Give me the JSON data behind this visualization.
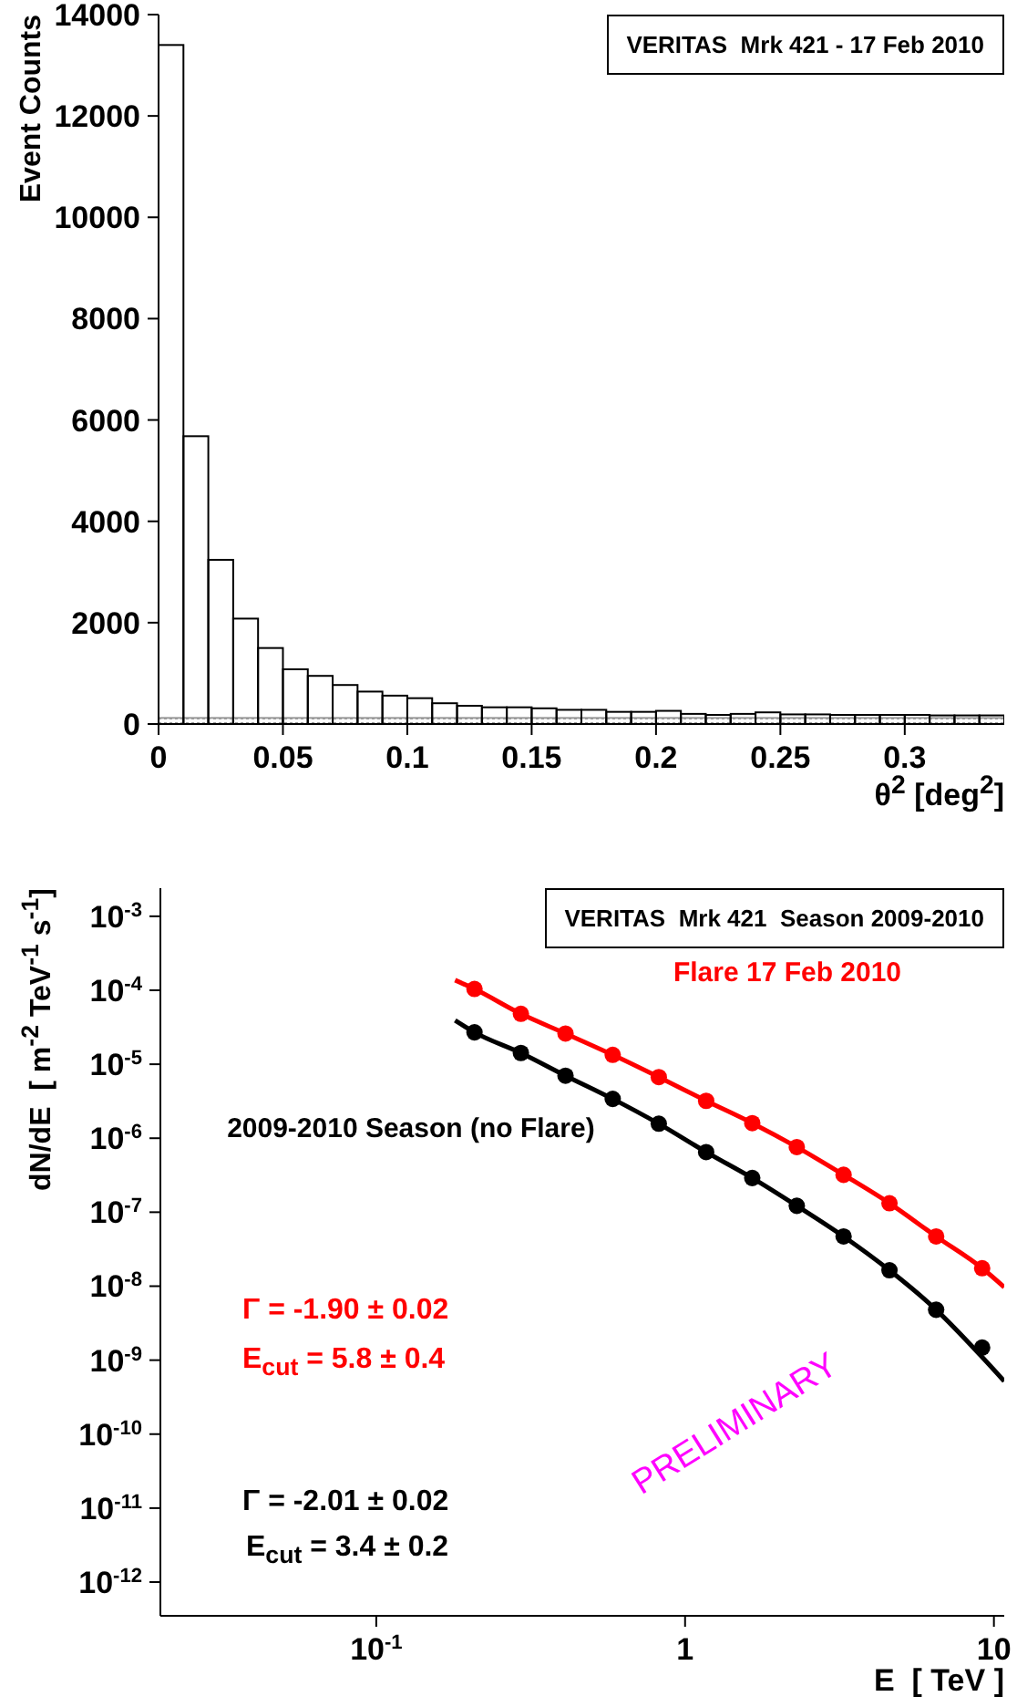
{
  "chart_data": [
    {
      "type": "histogram",
      "title": "VERITAS  Mrk 421 - 17 Feb 2010",
      "xlabel": "θ$^{2}$ [deg$^{2}$]",
      "ylabel": "Event Counts",
      "bins": [
        0,
        0.01,
        0.02,
        0.03,
        0.04,
        0.05,
        0.06,
        0.07,
        0.08,
        0.09,
        0.1,
        0.11,
        0.12,
        0.13,
        0.14,
        0.15,
        0.16,
        0.17,
        0.18,
        0.19,
        0.2,
        0.21,
        0.22,
        0.23,
        0.24,
        0.25,
        0.26,
        0.27,
        0.28,
        0.29,
        0.3,
        0.31,
        0.32,
        0.33,
        0.34
      ],
      "series": [
        {
          "color": "#000000",
          "values": [
            13400,
            5680,
            3240,
            2080,
            1500,
            1080,
            950,
            770,
            640,
            560,
            510,
            410,
            360,
            330,
            330,
            310,
            280,
            280,
            240,
            240,
            260,
            200,
            180,
            200,
            230,
            190,
            190,
            180,
            180,
            180,
            180,
            170,
            170,
            170
          ]
        },
        {
          "color": "#999999",
          "values": [
            120,
            120,
            120,
            120,
            120,
            120,
            120,
            120,
            120,
            120,
            120,
            120,
            120,
            120,
            120,
            120,
            120,
            120,
            120,
            120,
            120,
            120,
            120,
            120,
            120,
            120,
            120,
            120,
            120,
            120,
            120,
            120,
            120,
            120
          ]
        }
      ],
      "xlim": [
        0,
        0.34
      ],
      "ylim": [
        0,
        14000
      ],
      "xticks": [
        0,
        0.05,
        0.1,
        0.15,
        0.2,
        0.25,
        0.3
      ],
      "yticks": [
        0,
        2000,
        4000,
        6000,
        8000,
        10000,
        12000,
        14000
      ],
      "grid": false,
      "legend": false
    },
    {
      "type": "scatter",
      "title": "VERITAS  Mrk 421  Season 2009-2010",
      "xlabel": "E  [ TeV ]",
      "ylabel": "dN/dE  [ m$^{-2}$ TeV$^{-1}$ s$^{-1}$]",
      "series": [
        {
          "name": "Flare 17 Feb 2010",
          "color": "#ff0000",
          "x": [
            0.208,
            0.294,
            0.41,
            0.583,
            0.822,
            1.17,
            1.65,
            2.3,
            3.26,
            4.59,
            6.5,
            9.16
          ],
          "values": [
            0.000104,
            4.8e-05,
            2.6e-05,
            1.34e-05,
            6.7e-06,
            3.2e-06,
            1.6e-06,
            7.6e-07,
            3.2e-07,
            1.32e-07,
            4.7e-08,
            1.75e-08
          ]
        },
        {
          "name": "2009-2010 Season (no Flare)",
          "color": "#000000",
          "x": [
            0.208,
            0.294,
            0.41,
            0.583,
            0.822,
            1.17,
            1.65,
            2.3,
            3.26,
            4.59,
            6.5,
            9.16
          ],
          "values": [
            2.7e-05,
            1.42e-05,
            7e-06,
            3.4e-06,
            1.57e-06,
            6.5e-07,
            2.9e-07,
            1.22e-07,
            4.7e-08,
            1.64e-08,
            4.8e-09,
            1.48e-09
          ]
        },
        {
          "type": "line",
          "marker": "none",
          "color": "#ff0000",
          "x": [
            0.18,
            0.208,
            0.294,
            0.41,
            0.583,
            0.822,
            1.17,
            1.65,
            2.3,
            3.26,
            4.59,
            6.5,
            9.16,
            10.8
          ],
          "values": [
            0.000137,
            0.000104,
            4.8e-05,
            2.6e-05,
            1.34e-05,
            6.7e-06,
            3.2e-06,
            1.6e-06,
            7.6e-07,
            3.2e-07,
            1.32e-07,
            4.7e-08,
            1.75e-08,
            9.7e-09
          ]
        },
        {
          "type": "line",
          "marker": "none",
          "color": "#000000",
          "x": [
            0.18,
            0.208,
            0.294,
            0.41,
            0.583,
            0.822,
            1.17,
            1.65,
            2.3,
            3.26,
            4.59,
            6.5,
            9.16,
            10.8
          ],
          "values": [
            3.9e-05,
            2.7e-05,
            1.42e-05,
            7e-06,
            3.4e-06,
            1.57e-06,
            6.5e-07,
            2.9e-07,
            1.22e-07,
            4.7e-08,
            1.64e-08,
            4.8e-09,
            1.1e-09,
            5.2e-10
          ]
        }
      ],
      "annotations": [
        "Γ = -1.90 ± 0.02",
        "E$_{cut}$ = 5.8 ± 0.4",
        "Γ = -2.01 ± 0.02",
        "E$_{cut}$ = 3.4 ± 0.2",
        "PRELIMINARY"
      ],
      "log": "xy",
      "marker": "circle",
      "line_style": "solid",
      "grid": false,
      "legend": false,
      "xlim": [
        0.02,
        10.8
      ],
      "ylim": [
        3.5e-13,
        0.0024
      ],
      "xticks": [
        {
          "value": 0.1,
          "label": "10$^{-1}$"
        },
        1,
        10
      ],
      "yticks": [
        {
          "value": 1e-12,
          "label": "10$^{-12}$"
        },
        {
          "value": 1e-11,
          "label": "10$^{-11}$"
        },
        {
          "value": 1e-10,
          "label": "10$^{-10}$"
        },
        {
          "value": 1e-09,
          "label": "10$^{-9}$"
        },
        {
          "value": 1e-08,
          "label": "10$^{-8}$"
        },
        {
          "value": 1e-07,
          "label": "10$^{-7}$"
        },
        {
          "value": 1e-06,
          "label": "10$^{-6}$"
        },
        {
          "value": 1e-05,
          "label": "10$^{-5}$"
        },
        {
          "value": 0.0001,
          "label": "10$^{-4}$"
        },
        {
          "value": 0.001,
          "label": "10$^{-3}$"
        }
      ]
    }
  ]
}
